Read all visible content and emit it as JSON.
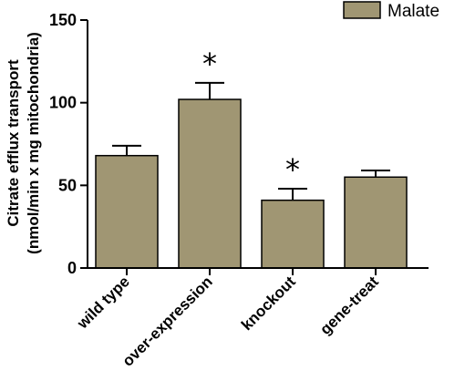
{
  "chart_data": {
    "type": "bar",
    "categories": [
      "wild type",
      "over-expression",
      "knockout",
      "gene-treat"
    ],
    "series": [
      {
        "name": "Malate",
        "values": [
          68,
          102,
          41,
          55
        ],
        "errors": [
          6,
          10,
          7,
          4
        ],
        "significant": [
          false,
          true,
          true,
          false
        ]
      }
    ],
    "title": "",
    "xlabel": "",
    "ylabel": [
      "Citrate efflux transport",
      "(nmol/min x mg mitochondria)"
    ],
    "ylim": [
      0,
      150
    ],
    "yticks": [
      0,
      50,
      100,
      150
    ],
    "significance_marker": "*",
    "bar_color": "#a09673",
    "legend_position": "top-right",
    "grid": false
  }
}
